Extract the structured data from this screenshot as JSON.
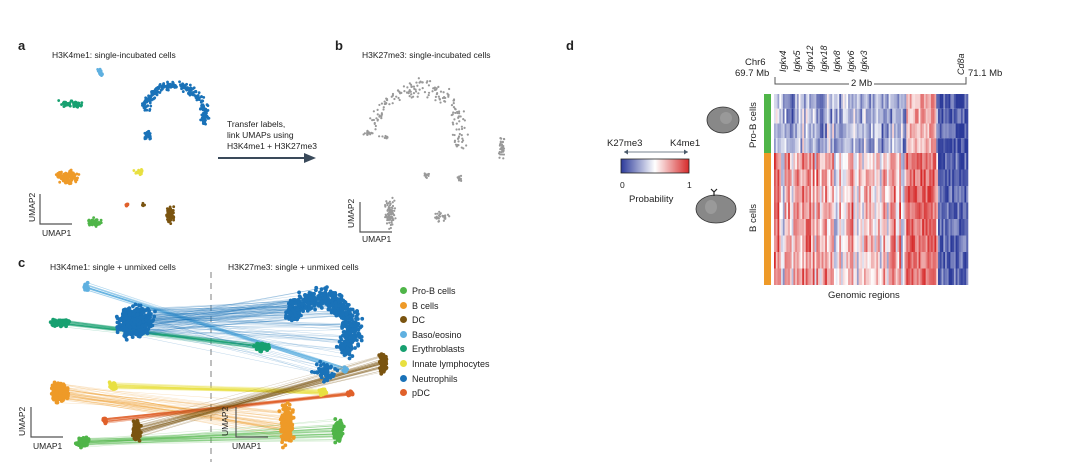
{
  "panel_a": {
    "letter": "a",
    "title": "H3K4me1: single-incubated cells",
    "xaxis": "UMAP1",
    "yaxis": "UMAP2"
  },
  "arrow_text": [
    "Transfer labels,",
    "link UMAPs using",
    "H3K4me1 + H3K27me3"
  ],
  "panel_b": {
    "letter": "b",
    "title": "H3K27me3: single-incubated cells",
    "xaxis": "UMAP1",
    "yaxis": "UMAP2",
    "point_color": "#999999"
  },
  "panel_c": {
    "letter": "c",
    "left_title": "H3K4me1: single + unmixed cells",
    "right_title": "H3K27me3: single + unmixed cells",
    "xaxis": "UMAP1",
    "yaxis": "UMAP2",
    "legend": [
      {
        "label": "Pro-B cells",
        "color": "#4fb548"
      },
      {
        "label": "B cells",
        "color": "#ee9a28"
      },
      {
        "label": "DC",
        "color": "#7a5410"
      },
      {
        "label": "Baso/eosino",
        "color": "#5fb0e0"
      },
      {
        "label": "Erythroblasts",
        "color": "#17a070"
      },
      {
        "label": "Innate lymphocytes",
        "color": "#e8e040"
      },
      {
        "label": "Neutrophils",
        "color": "#1a72b8"
      },
      {
        "label": "pDC",
        "color": "#e0602a"
      }
    ]
  },
  "panel_d": {
    "letter": "d",
    "chr_label": "Chr6",
    "start": "69.7 Mb",
    "end": "71.1 Mb",
    "scale": "2 Mb",
    "genes": [
      "Igkv4",
      "Igkv5",
      "Igkv12",
      "Igkv18",
      "Igkv8",
      "Igkv6",
      "Igkv3"
    ],
    "end_gene": "Cd8a",
    "rows": [
      {
        "label": "Pro-B cells",
        "color": "#4fb548"
      },
      {
        "label": "B cells",
        "color": "#ee9a28"
      }
    ],
    "xlabel": "Genomic regions",
    "colorbar": {
      "left": "K27me3",
      "right": "K4me1",
      "min": "0",
      "max": "1",
      "title": "Probability",
      "low_color": "#2b3a9a",
      "mid_color": "#ffffff",
      "high_color": "#d62a2a"
    }
  }
}
